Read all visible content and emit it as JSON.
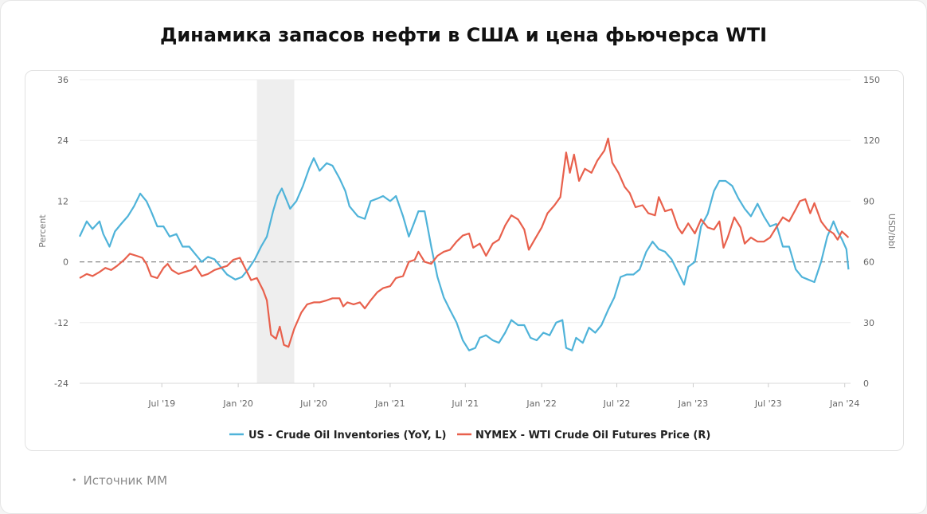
{
  "page": {
    "title": "Динамика запасов нефти в США и цена фьючерса WTI",
    "source": "Источник ММ",
    "bullet": "•"
  },
  "chart_data": {
    "type": "line",
    "title": "Динамика запасов нефти в США и цена фьючерса WTI",
    "ylabel_left": "Percent",
    "ylabel_right": "USD/bbl",
    "ylim_left": [
      -24,
      36
    ],
    "ylim_right": [
      0,
      150
    ],
    "yticks_left": [
      -24,
      -12,
      0,
      12,
      24,
      36
    ],
    "yticks_right": [
      0,
      30,
      60,
      90,
      120,
      150
    ],
    "xlim": [
      "2018-12-15",
      "2024-01-15"
    ],
    "xticks": [
      {
        "date": "2019-07-01",
        "label": "Jul '19"
      },
      {
        "date": "2020-01-01",
        "label": "Jan '20"
      },
      {
        "date": "2020-07-01",
        "label": "Jul '20"
      },
      {
        "date": "2021-01-01",
        "label": "Jan '21"
      },
      {
        "date": "2021-07-01",
        "label": "Jul '21"
      },
      {
        "date": "2022-01-01",
        "label": "Jan '22"
      },
      {
        "date": "2022-07-01",
        "label": "Jul '22"
      },
      {
        "date": "2023-01-01",
        "label": "Jan '23"
      },
      {
        "date": "2023-07-01",
        "label": "Jul '23"
      },
      {
        "date": "2024-01-01",
        "label": "Jan '24"
      }
    ],
    "reference_line": {
      "axis": "left",
      "value": 0,
      "style": "dashed"
    },
    "shaded_region": {
      "from": "2020-02-15",
      "to": "2020-05-15"
    },
    "legend_position": "bottom",
    "series": [
      {
        "name": "US - Crude Oil Inventories (YoY, L)",
        "axis": "left",
        "color": "#4fb3d9",
        "points": [
          [
            "2018-12-15",
            5
          ],
          [
            "2019-01-01",
            8
          ],
          [
            "2019-01-15",
            6.5
          ],
          [
            "2019-02-01",
            8
          ],
          [
            "2019-02-10",
            5.5
          ],
          [
            "2019-02-25",
            3
          ],
          [
            "2019-03-10",
            6
          ],
          [
            "2019-03-25",
            7.5
          ],
          [
            "2019-04-10",
            9
          ],
          [
            "2019-04-25",
            11
          ],
          [
            "2019-05-10",
            13.5
          ],
          [
            "2019-05-25",
            12
          ],
          [
            "2019-06-05",
            10
          ],
          [
            "2019-06-20",
            7
          ],
          [
            "2019-07-05",
            7
          ],
          [
            "2019-07-20",
            5
          ],
          [
            "2019-08-05",
            5.5
          ],
          [
            "2019-08-20",
            3
          ],
          [
            "2019-09-05",
            3
          ],
          [
            "2019-09-20",
            1.5
          ],
          [
            "2019-10-05",
            0
          ],
          [
            "2019-10-20",
            1
          ],
          [
            "2019-11-05",
            0.5
          ],
          [
            "2019-11-20",
            -1
          ],
          [
            "2019-12-05",
            -2.5
          ],
          [
            "2019-12-25",
            -3.5
          ],
          [
            "2020-01-10",
            -3
          ],
          [
            "2020-01-25",
            -1.5
          ],
          [
            "2020-02-10",
            0.5
          ],
          [
            "2020-02-25",
            3
          ],
          [
            "2020-03-10",
            5
          ],
          [
            "2020-03-25",
            10
          ],
          [
            "2020-04-05",
            13
          ],
          [
            "2020-04-15",
            14.5
          ],
          [
            "2020-04-25",
            12.5
          ],
          [
            "2020-05-05",
            10.5
          ],
          [
            "2020-05-20",
            12
          ],
          [
            "2020-06-05",
            15
          ],
          [
            "2020-06-20",
            18.5
          ],
          [
            "2020-07-01",
            20.5
          ],
          [
            "2020-07-15",
            18
          ],
          [
            "2020-08-01",
            19.5
          ],
          [
            "2020-08-15",
            19
          ],
          [
            "2020-09-01",
            16.5
          ],
          [
            "2020-09-15",
            14
          ],
          [
            "2020-09-25",
            11
          ],
          [
            "2020-10-15",
            9
          ],
          [
            "2020-11-01",
            8.5
          ],
          [
            "2020-11-15",
            12
          ],
          [
            "2020-12-01",
            12.5
          ],
          [
            "2020-12-15",
            13
          ],
          [
            "2021-01-01",
            12
          ],
          [
            "2021-01-15",
            13
          ],
          [
            "2021-02-01",
            9
          ],
          [
            "2021-02-15",
            5
          ],
          [
            "2021-03-01",
            8
          ],
          [
            "2021-03-10",
            10
          ],
          [
            "2021-03-25",
            10
          ],
          [
            "2021-04-10",
            3
          ],
          [
            "2021-04-25",
            -3
          ],
          [
            "2021-05-10",
            -7
          ],
          [
            "2021-05-25",
            -9.5
          ],
          [
            "2021-06-10",
            -12
          ],
          [
            "2021-06-25",
            -15.5
          ],
          [
            "2021-07-10",
            -17.5
          ],
          [
            "2021-07-25",
            -17
          ],
          [
            "2021-08-05",
            -15
          ],
          [
            "2021-08-20",
            -14.5
          ],
          [
            "2021-09-05",
            -15.5
          ],
          [
            "2021-09-20",
            -16
          ],
          [
            "2021-10-05",
            -14
          ],
          [
            "2021-10-20",
            -11.5
          ],
          [
            "2021-11-05",
            -12.5
          ],
          [
            "2021-11-20",
            -12.5
          ],
          [
            "2021-12-05",
            -15
          ],
          [
            "2021-12-20",
            -15.5
          ],
          [
            "2022-01-05",
            -14
          ],
          [
            "2022-01-20",
            -14.5
          ],
          [
            "2022-02-05",
            -12
          ],
          [
            "2022-02-20",
            -11.5
          ],
          [
            "2022-03-01",
            -17
          ],
          [
            "2022-03-15",
            -17.5
          ],
          [
            "2022-03-25",
            -15
          ],
          [
            "2022-04-10",
            -16
          ],
          [
            "2022-04-25",
            -13
          ],
          [
            "2022-05-10",
            -14
          ],
          [
            "2022-05-25",
            -12.5
          ],
          [
            "2022-06-10",
            -9.5
          ],
          [
            "2022-06-25",
            -7
          ],
          [
            "2022-07-10",
            -3
          ],
          [
            "2022-07-25",
            -2.5
          ],
          [
            "2022-08-10",
            -2.5
          ],
          [
            "2022-08-25",
            -1.5
          ],
          [
            "2022-09-10",
            2
          ],
          [
            "2022-09-25",
            4
          ],
          [
            "2022-10-10",
            2.5
          ],
          [
            "2022-10-25",
            2
          ],
          [
            "2022-11-10",
            0.5
          ],
          [
            "2022-11-25",
            -2
          ],
          [
            "2022-12-10",
            -4.5
          ],
          [
            "2022-12-20",
            -1
          ],
          [
            "2023-01-05",
            0
          ],
          [
            "2023-01-20",
            7
          ],
          [
            "2023-02-05",
            9.5
          ],
          [
            "2023-02-20",
            14
          ],
          [
            "2023-03-05",
            16
          ],
          [
            "2023-03-20",
            16
          ],
          [
            "2023-04-05",
            15
          ],
          [
            "2023-04-20",
            12.5
          ],
          [
            "2023-05-05",
            10.5
          ],
          [
            "2023-05-20",
            9
          ],
          [
            "2023-06-05",
            11.5
          ],
          [
            "2023-06-20",
            9
          ],
          [
            "2023-07-05",
            7
          ],
          [
            "2023-07-20",
            7.5
          ],
          [
            "2023-08-05",
            3
          ],
          [
            "2023-08-20",
            3
          ],
          [
            "2023-09-05",
            -1.5
          ],
          [
            "2023-09-20",
            -3
          ],
          [
            "2023-10-05",
            -3.5
          ],
          [
            "2023-10-20",
            -4
          ],
          [
            "2023-11-05",
            0
          ],
          [
            "2023-11-20",
            5
          ],
          [
            "2023-12-05",
            8
          ],
          [
            "2023-12-15",
            6
          ],
          [
            "2023-12-25",
            4.5
          ],
          [
            "2024-01-05",
            2.5
          ],
          [
            "2024-01-10",
            -1.5
          ]
        ]
      },
      {
        "name": "NYMEX - WTI Crude Oil Futures Price (R)",
        "axis": "right",
        "color": "#e8604c",
        "points": [
          [
            "2018-12-15",
            52
          ],
          [
            "2019-01-01",
            54
          ],
          [
            "2019-01-15",
            53
          ],
          [
            "2019-02-01",
            55
          ],
          [
            "2019-02-15",
            57
          ],
          [
            "2019-03-01",
            56
          ],
          [
            "2019-03-15",
            58
          ],
          [
            "2019-04-01",
            61
          ],
          [
            "2019-04-15",
            64
          ],
          [
            "2019-05-01",
            63
          ],
          [
            "2019-05-15",
            62
          ],
          [
            "2019-05-25",
            59
          ],
          [
            "2019-06-05",
            53
          ],
          [
            "2019-06-20",
            52
          ],
          [
            "2019-07-05",
            57
          ],
          [
            "2019-07-15",
            59
          ],
          [
            "2019-07-25",
            56
          ],
          [
            "2019-08-10",
            54
          ],
          [
            "2019-08-25",
            55
          ],
          [
            "2019-09-10",
            56
          ],
          [
            "2019-09-20",
            58
          ],
          [
            "2019-10-05",
            53
          ],
          [
            "2019-10-20",
            54
          ],
          [
            "2019-11-05",
            56
          ],
          [
            "2019-11-20",
            57
          ],
          [
            "2019-12-05",
            58
          ],
          [
            "2019-12-20",
            61
          ],
          [
            "2020-01-05",
            62
          ],
          [
            "2020-01-15",
            58
          ],
          [
            "2020-02-01",
            51
          ],
          [
            "2020-02-15",
            52
          ],
          [
            "2020-03-01",
            46
          ],
          [
            "2020-03-10",
            41
          ],
          [
            "2020-03-20",
            24
          ],
          [
            "2020-04-01",
            22
          ],
          [
            "2020-04-10",
            28
          ],
          [
            "2020-04-20",
            19
          ],
          [
            "2020-05-01",
            18
          ],
          [
            "2020-05-15",
            27
          ],
          [
            "2020-06-01",
            35
          ],
          [
            "2020-06-15",
            39
          ],
          [
            "2020-07-01",
            40
          ],
          [
            "2020-07-15",
            40
          ],
          [
            "2020-08-01",
            41
          ],
          [
            "2020-08-15",
            42
          ],
          [
            "2020-09-01",
            42
          ],
          [
            "2020-09-10",
            38
          ],
          [
            "2020-09-20",
            40
          ],
          [
            "2020-10-05",
            39
          ],
          [
            "2020-10-20",
            40
          ],
          [
            "2020-11-01",
            37
          ],
          [
            "2020-11-15",
            41
          ],
          [
            "2020-12-01",
            45
          ],
          [
            "2020-12-15",
            47
          ],
          [
            "2021-01-01",
            48
          ],
          [
            "2021-01-15",
            52
          ],
          [
            "2021-02-01",
            53
          ],
          [
            "2021-02-15",
            60
          ],
          [
            "2021-03-01",
            61
          ],
          [
            "2021-03-10",
            65
          ],
          [
            "2021-03-25",
            60
          ],
          [
            "2021-04-10",
            59
          ],
          [
            "2021-04-25",
            63
          ],
          [
            "2021-05-10",
            65
          ],
          [
            "2021-05-25",
            66
          ],
          [
            "2021-06-10",
            70
          ],
          [
            "2021-06-25",
            73
          ],
          [
            "2021-07-10",
            74
          ],
          [
            "2021-07-20",
            67
          ],
          [
            "2021-08-05",
            69
          ],
          [
            "2021-08-20",
            63
          ],
          [
            "2021-09-05",
            69
          ],
          [
            "2021-09-20",
            71
          ],
          [
            "2021-10-05",
            78
          ],
          [
            "2021-10-20",
            83
          ],
          [
            "2021-11-05",
            81
          ],
          [
            "2021-11-20",
            76
          ],
          [
            "2021-12-01",
            66
          ],
          [
            "2021-12-15",
            71
          ],
          [
            "2022-01-01",
            77
          ],
          [
            "2022-01-15",
            84
          ],
          [
            "2022-02-01",
            88
          ],
          [
            "2022-02-15",
            92
          ],
          [
            "2022-03-01",
            114
          ],
          [
            "2022-03-10",
            104
          ],
          [
            "2022-03-20",
            113
          ],
          [
            "2022-04-01",
            100
          ],
          [
            "2022-04-15",
            106
          ],
          [
            "2022-05-01",
            104
          ],
          [
            "2022-05-15",
            110
          ],
          [
            "2022-06-01",
            115
          ],
          [
            "2022-06-10",
            121
          ],
          [
            "2022-06-20",
            109
          ],
          [
            "2022-07-05",
            104
          ],
          [
            "2022-07-20",
            97
          ],
          [
            "2022-08-01",
            94
          ],
          [
            "2022-08-15",
            87
          ],
          [
            "2022-09-01",
            88
          ],
          [
            "2022-09-15",
            84
          ],
          [
            "2022-10-01",
            83
          ],
          [
            "2022-10-10",
            92
          ],
          [
            "2022-10-25",
            85
          ],
          [
            "2022-11-10",
            86
          ],
          [
            "2022-11-25",
            77
          ],
          [
            "2022-12-05",
            74
          ],
          [
            "2022-12-20",
            79
          ],
          [
            "2023-01-05",
            74
          ],
          [
            "2023-01-20",
            81
          ],
          [
            "2023-02-05",
            77
          ],
          [
            "2023-02-20",
            76
          ],
          [
            "2023-03-05",
            80
          ],
          [
            "2023-03-15",
            67
          ],
          [
            "2023-03-25",
            72
          ],
          [
            "2023-04-10",
            82
          ],
          [
            "2023-04-25",
            77
          ],
          [
            "2023-05-05",
            69
          ],
          [
            "2023-05-20",
            72
          ],
          [
            "2023-06-05",
            70
          ],
          [
            "2023-06-20",
            70
          ],
          [
            "2023-07-05",
            72
          ],
          [
            "2023-07-20",
            77
          ],
          [
            "2023-08-05",
            82
          ],
          [
            "2023-08-20",
            80
          ],
          [
            "2023-09-05",
            86
          ],
          [
            "2023-09-15",
            90
          ],
          [
            "2023-09-28",
            91
          ],
          [
            "2023-10-10",
            84
          ],
          [
            "2023-10-20",
            89
          ],
          [
            "2023-11-05",
            80
          ],
          [
            "2023-11-20",
            76
          ],
          [
            "2023-12-05",
            74
          ],
          [
            "2023-12-15",
            71
          ],
          [
            "2023-12-25",
            75
          ],
          [
            "2024-01-05",
            73
          ],
          [
            "2024-01-10",
            72
          ]
        ]
      }
    ]
  }
}
